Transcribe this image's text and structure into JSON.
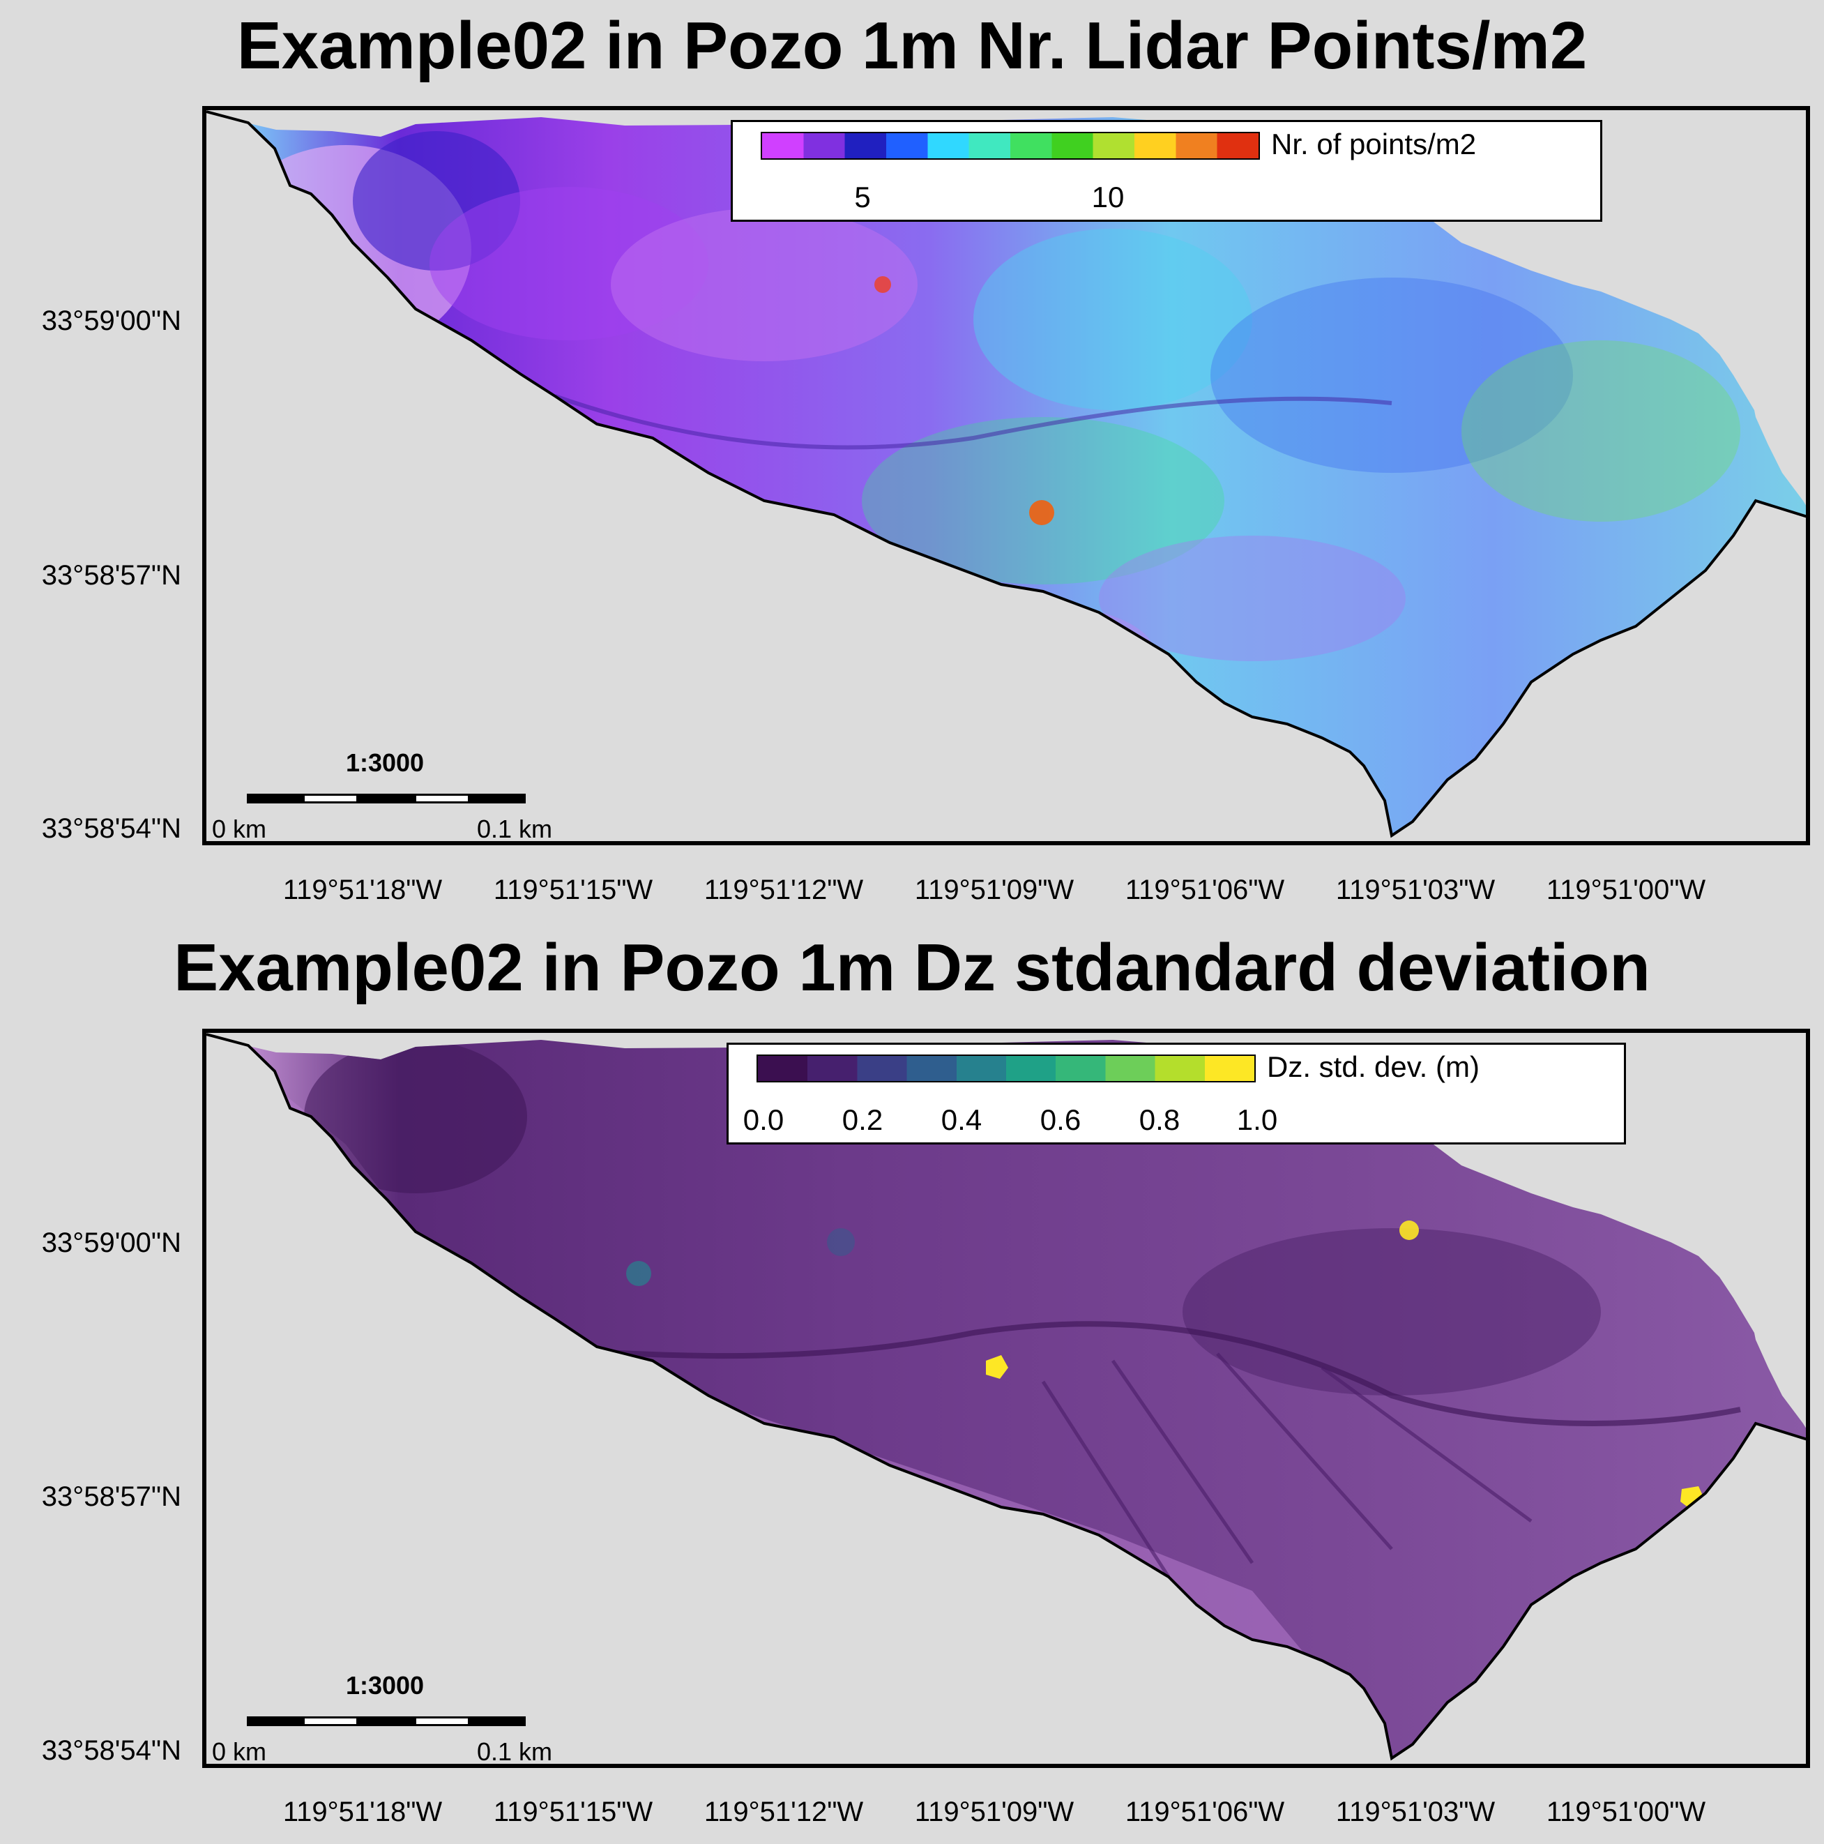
{
  "panels": [
    {
      "title": "Example02 in Pozo 1m Nr. Lidar Points/m2",
      "legend": {
        "label": "Nr. of points/m2",
        "ticks": [
          "5",
          "10"
        ],
        "colors": [
          "#d040ff",
          "#8030e0",
          "#2020c0",
          "#2060ff",
          "#30d8ff",
          "#40e8c0",
          "#40e060",
          "#40d020",
          "#b0e030",
          "#ffd020",
          "#f08020",
          "#e03010"
        ]
      },
      "scale": {
        "ratio": "1:3000",
        "start": "0 km",
        "end": "0.1 km"
      },
      "lat_labels": [
        "33°59'00\"N",
        "33°58'57\"N",
        "33°58'54\"N"
      ],
      "lon_labels": [
        "119°51'18\"W",
        "119°51'15\"W",
        "119°51'12\"W",
        "119°51'09\"W",
        "119°51'06\"W",
        "119°51'03\"W",
        "119°51'00\"W"
      ]
    },
    {
      "title": "Example02 in Pozo 1m Dz stdandard deviation",
      "legend": {
        "label": "Dz. std. dev. (m)",
        "ticks": [
          "0.0",
          "0.2",
          "0.4",
          "0.6",
          "0.8",
          "1.0"
        ],
        "colors": [
          "#3b0f50",
          "#46206e",
          "#3a3f86",
          "#2f5e8e",
          "#26818e",
          "#1fa187",
          "#35b779",
          "#6dce59",
          "#b4de2c",
          "#fde725"
        ]
      },
      "scale": {
        "ratio": "1:3000",
        "start": "0 km",
        "end": "0.1 km"
      },
      "lat_labels": [
        "33°59'00\"N",
        "33°58'57\"N",
        "33°58'54\"N"
      ],
      "lon_labels": [
        "119°51'18\"W",
        "119°51'15\"W",
        "119°51'12\"W",
        "119°51'09\"W",
        "119°51'06\"W",
        "119°51'03\"W",
        "119°51'00\"W"
      ]
    }
  ]
}
